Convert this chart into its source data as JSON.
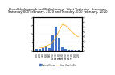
{
  "title": "Flood Hydrograph for Mytholmroyd, West Yorkshire, (between",
  "title2": "Saturday 005 February, 2020 and Monday, 000 February, 2020",
  "bar_values": [
    0.15,
    0.2,
    0.35,
    0.5,
    0.3,
    1.8,
    2.8,
    1.5,
    0.4,
    0.15,
    0.1,
    0.08,
    0.05,
    0.04
  ],
  "line_values": [
    0.5,
    0.6,
    0.7,
    0.9,
    1.2,
    1.8,
    2.8,
    4.2,
    5.5,
    5.2,
    4.5,
    3.8,
    3.2,
    2.8
  ],
  "x_labels": [
    "0:00",
    "2:00",
    "4:00",
    "6:00",
    "8:00",
    "10:00",
    "12:00",
    "14:00",
    "16:00",
    "18:00",
    "20:00",
    "22:00",
    "0:00",
    "2:00"
  ],
  "bar_color": "#4472C4",
  "line_color": "#FFA500",
  "background_color": "#ffffff",
  "title_fontsize": 2.8,
  "tick_fontsize": 2.0,
  "ylim_bar": [
    0,
    4
  ],
  "ylim_line": [
    0,
    7
  ],
  "legend_labels": [
    "Rainfall (mm)",
    "River flow (m3/s)"
  ]
}
